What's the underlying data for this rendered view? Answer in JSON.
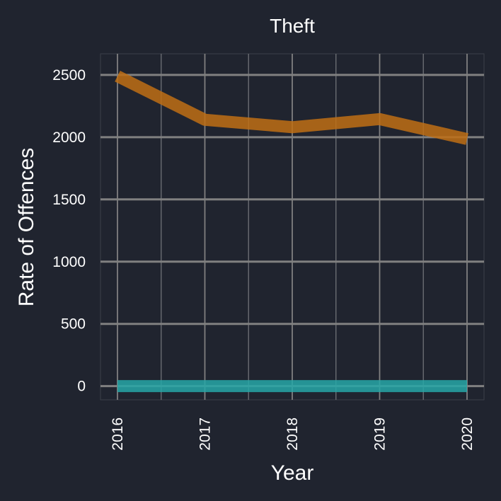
{
  "chart_data": {
    "type": "line",
    "title": "Theft",
    "xlabel": "Year",
    "ylabel": "Rate of Offences",
    "categories": [
      "2016",
      "2017",
      "2018",
      "2019",
      "2020"
    ],
    "x_ticks": [
      "2016",
      "2017",
      "2018",
      "2019",
      "2020"
    ],
    "y_ticks": [
      "0",
      "500",
      "1000",
      "1500",
      "2000",
      "2500"
    ],
    "ylim": [
      -110,
      2670
    ],
    "grid": true,
    "legend": "none",
    "series": [
      {
        "values": [
          2490,
          2140,
          2080,
          2145,
          1985
        ],
        "color": "#c06e14"
      },
      {
        "values": [
          0,
          0,
          0,
          0,
          0
        ],
        "color": "#27a7a7"
      }
    ]
  },
  "colors": {
    "background": "#20242f",
    "panel_border": "#3b3f48",
    "grid_major": "#808080",
    "grid_minor": "#6a6d73",
    "text": "#ffffff"
  }
}
